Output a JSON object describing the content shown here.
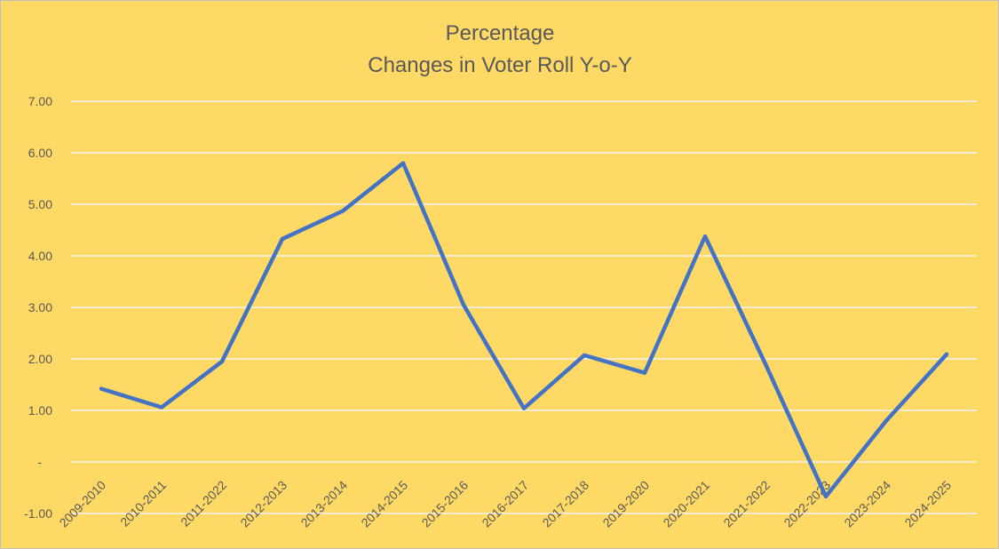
{
  "chart_data": {
    "type": "line",
    "title_lines": [
      "Percentage",
      "Changes in Voter Roll Y-o-Y"
    ],
    "xlabel": "",
    "ylabel": "",
    "categories": [
      "2009-2010",
      "2010-2011",
      "2011-2022",
      "2012-2013",
      "2013-2014",
      "2014-2015",
      "2015-2016",
      "2016-2017",
      "2017-2018",
      "2019-2020",
      "2020-2021",
      "2021-2022",
      "2022-2023",
      "2023-2024",
      "2024-2025"
    ],
    "series": [
      {
        "values": [
          1.42,
          1.06,
          1.95,
          4.33,
          4.87,
          5.8,
          3.05,
          1.04,
          2.07,
          1.73,
          4.38,
          1.9,
          -0.67,
          0.8,
          2.09
        ],
        "color": "#4472c4"
      }
    ],
    "ylim": [
      -1,
      7
    ],
    "y_ticks": [
      {
        "value": -1,
        "label": "-1.00"
      },
      {
        "value": 0,
        "label": "-"
      },
      {
        "value": 1,
        "label": "1.00"
      },
      {
        "value": 2,
        "label": "2.00"
      },
      {
        "value": 3,
        "label": "3.00"
      },
      {
        "value": 4,
        "label": "4.00"
      },
      {
        "value": 5,
        "label": "5.00"
      },
      {
        "value": 6,
        "label": "6.00"
      },
      {
        "value": 7,
        "label": "7.00"
      }
    ],
    "grid": true,
    "legend": "none",
    "colors": {
      "background": "#ffd966",
      "grid": "#f2f2f2",
      "text": "#595959",
      "line": "#4472c4"
    }
  }
}
